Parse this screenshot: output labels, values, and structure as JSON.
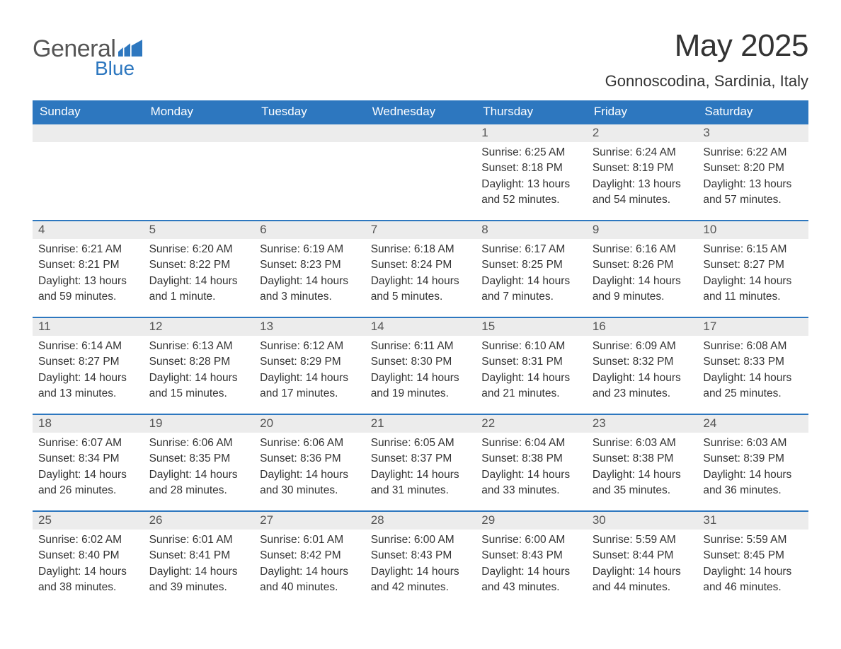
{
  "brand": {
    "general": "General",
    "blue": "Blue"
  },
  "header": {
    "title": "May 2025",
    "location": "Gonnoscodina, Sardinia, Italy"
  },
  "style": {
    "accent_color": "#2d77bf",
    "daynum_bg": "#ececec",
    "background": "#ffffff",
    "text_color": "#333333",
    "header_text_color": "#ffffff",
    "title_fontsize": 44,
    "location_fontsize": 22,
    "dayhdr_fontsize": 17,
    "cell_fontsize": 15.5,
    "columns": 7
  },
  "day_headers": [
    "Sunday",
    "Monday",
    "Tuesday",
    "Wednesday",
    "Thursday",
    "Friday",
    "Saturday"
  ],
  "weeks": [
    [
      null,
      null,
      null,
      null,
      {
        "n": "1",
        "sunrise": "Sunrise: 6:25 AM",
        "sunset": "Sunset: 8:18 PM",
        "daylight": "Daylight: 13 hours and 52 minutes."
      },
      {
        "n": "2",
        "sunrise": "Sunrise: 6:24 AM",
        "sunset": "Sunset: 8:19 PM",
        "daylight": "Daylight: 13 hours and 54 minutes."
      },
      {
        "n": "3",
        "sunrise": "Sunrise: 6:22 AM",
        "sunset": "Sunset: 8:20 PM",
        "daylight": "Daylight: 13 hours and 57 minutes."
      }
    ],
    [
      {
        "n": "4",
        "sunrise": "Sunrise: 6:21 AM",
        "sunset": "Sunset: 8:21 PM",
        "daylight": "Daylight: 13 hours and 59 minutes."
      },
      {
        "n": "5",
        "sunrise": "Sunrise: 6:20 AM",
        "sunset": "Sunset: 8:22 PM",
        "daylight": "Daylight: 14 hours and 1 minute."
      },
      {
        "n": "6",
        "sunrise": "Sunrise: 6:19 AM",
        "sunset": "Sunset: 8:23 PM",
        "daylight": "Daylight: 14 hours and 3 minutes."
      },
      {
        "n": "7",
        "sunrise": "Sunrise: 6:18 AM",
        "sunset": "Sunset: 8:24 PM",
        "daylight": "Daylight: 14 hours and 5 minutes."
      },
      {
        "n": "8",
        "sunrise": "Sunrise: 6:17 AM",
        "sunset": "Sunset: 8:25 PM",
        "daylight": "Daylight: 14 hours and 7 minutes."
      },
      {
        "n": "9",
        "sunrise": "Sunrise: 6:16 AM",
        "sunset": "Sunset: 8:26 PM",
        "daylight": "Daylight: 14 hours and 9 minutes."
      },
      {
        "n": "10",
        "sunrise": "Sunrise: 6:15 AM",
        "sunset": "Sunset: 8:27 PM",
        "daylight": "Daylight: 14 hours and 11 minutes."
      }
    ],
    [
      {
        "n": "11",
        "sunrise": "Sunrise: 6:14 AM",
        "sunset": "Sunset: 8:27 PM",
        "daylight": "Daylight: 14 hours and 13 minutes."
      },
      {
        "n": "12",
        "sunrise": "Sunrise: 6:13 AM",
        "sunset": "Sunset: 8:28 PM",
        "daylight": "Daylight: 14 hours and 15 minutes."
      },
      {
        "n": "13",
        "sunrise": "Sunrise: 6:12 AM",
        "sunset": "Sunset: 8:29 PM",
        "daylight": "Daylight: 14 hours and 17 minutes."
      },
      {
        "n": "14",
        "sunrise": "Sunrise: 6:11 AM",
        "sunset": "Sunset: 8:30 PM",
        "daylight": "Daylight: 14 hours and 19 minutes."
      },
      {
        "n": "15",
        "sunrise": "Sunrise: 6:10 AM",
        "sunset": "Sunset: 8:31 PM",
        "daylight": "Daylight: 14 hours and 21 minutes."
      },
      {
        "n": "16",
        "sunrise": "Sunrise: 6:09 AM",
        "sunset": "Sunset: 8:32 PM",
        "daylight": "Daylight: 14 hours and 23 minutes."
      },
      {
        "n": "17",
        "sunrise": "Sunrise: 6:08 AM",
        "sunset": "Sunset: 8:33 PM",
        "daylight": "Daylight: 14 hours and 25 minutes."
      }
    ],
    [
      {
        "n": "18",
        "sunrise": "Sunrise: 6:07 AM",
        "sunset": "Sunset: 8:34 PM",
        "daylight": "Daylight: 14 hours and 26 minutes."
      },
      {
        "n": "19",
        "sunrise": "Sunrise: 6:06 AM",
        "sunset": "Sunset: 8:35 PM",
        "daylight": "Daylight: 14 hours and 28 minutes."
      },
      {
        "n": "20",
        "sunrise": "Sunrise: 6:06 AM",
        "sunset": "Sunset: 8:36 PM",
        "daylight": "Daylight: 14 hours and 30 minutes."
      },
      {
        "n": "21",
        "sunrise": "Sunrise: 6:05 AM",
        "sunset": "Sunset: 8:37 PM",
        "daylight": "Daylight: 14 hours and 31 minutes."
      },
      {
        "n": "22",
        "sunrise": "Sunrise: 6:04 AM",
        "sunset": "Sunset: 8:38 PM",
        "daylight": "Daylight: 14 hours and 33 minutes."
      },
      {
        "n": "23",
        "sunrise": "Sunrise: 6:03 AM",
        "sunset": "Sunset: 8:38 PM",
        "daylight": "Daylight: 14 hours and 35 minutes."
      },
      {
        "n": "24",
        "sunrise": "Sunrise: 6:03 AM",
        "sunset": "Sunset: 8:39 PM",
        "daylight": "Daylight: 14 hours and 36 minutes."
      }
    ],
    [
      {
        "n": "25",
        "sunrise": "Sunrise: 6:02 AM",
        "sunset": "Sunset: 8:40 PM",
        "daylight": "Daylight: 14 hours and 38 minutes."
      },
      {
        "n": "26",
        "sunrise": "Sunrise: 6:01 AM",
        "sunset": "Sunset: 8:41 PM",
        "daylight": "Daylight: 14 hours and 39 minutes."
      },
      {
        "n": "27",
        "sunrise": "Sunrise: 6:01 AM",
        "sunset": "Sunset: 8:42 PM",
        "daylight": "Daylight: 14 hours and 40 minutes."
      },
      {
        "n": "28",
        "sunrise": "Sunrise: 6:00 AM",
        "sunset": "Sunset: 8:43 PM",
        "daylight": "Daylight: 14 hours and 42 minutes."
      },
      {
        "n": "29",
        "sunrise": "Sunrise: 6:00 AM",
        "sunset": "Sunset: 8:43 PM",
        "daylight": "Daylight: 14 hours and 43 minutes."
      },
      {
        "n": "30",
        "sunrise": "Sunrise: 5:59 AM",
        "sunset": "Sunset: 8:44 PM",
        "daylight": "Daylight: 14 hours and 44 minutes."
      },
      {
        "n": "31",
        "sunrise": "Sunrise: 5:59 AM",
        "sunset": "Sunset: 8:45 PM",
        "daylight": "Daylight: 14 hours and 46 minutes."
      }
    ]
  ]
}
